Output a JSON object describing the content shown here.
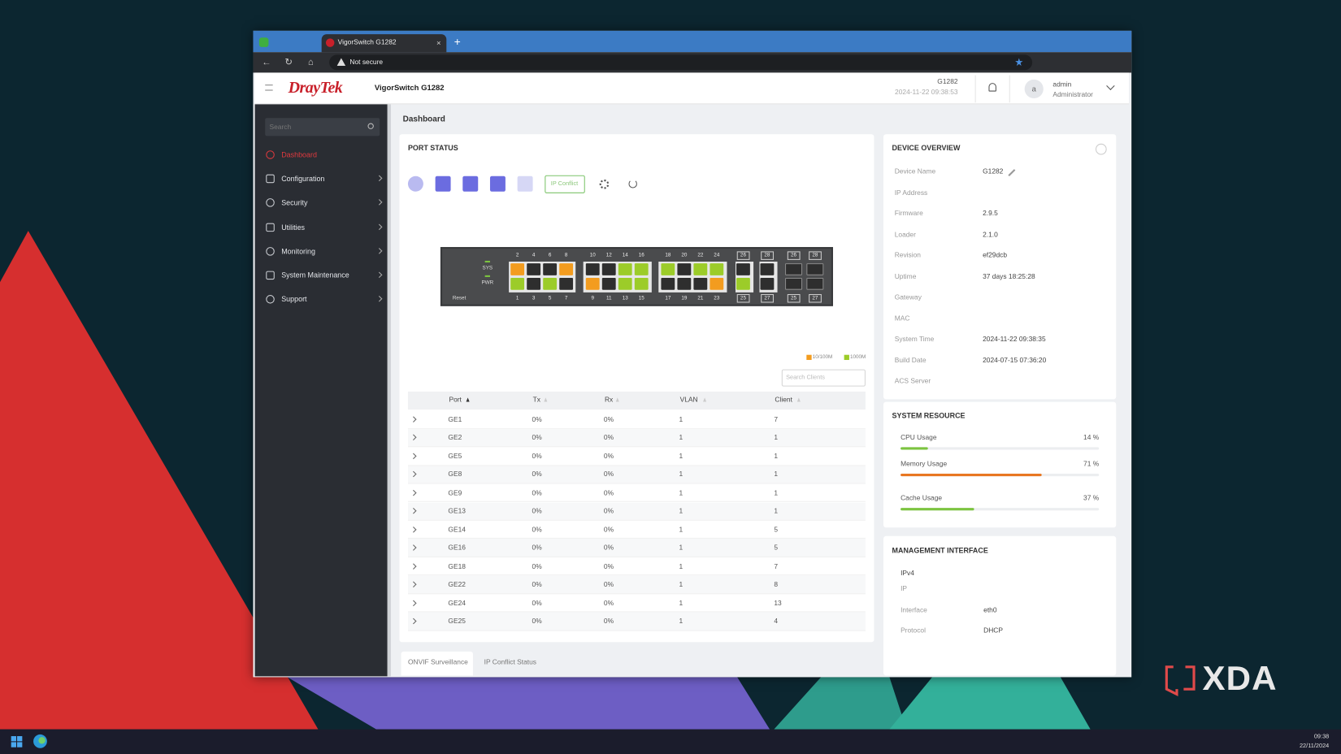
{
  "browser": {
    "tab_title": "VigorSwitch G1282",
    "security": "Not secure"
  },
  "header": {
    "brand": "DrayTek",
    "product": "VigorSwitch G1282",
    "model": "G1282",
    "datetime": "2024-11-22 09:38:53",
    "avatar": "a",
    "user": "admin",
    "role": "Administrator"
  },
  "sidebar": {
    "search_placeholder": "Search",
    "items": [
      "Dashboard",
      "Configuration",
      "Security",
      "Utilities",
      "Monitoring",
      "System Maintenance",
      "Support"
    ]
  },
  "breadcrumb": "Dashboard",
  "port_status": {
    "title": "PORT STATUS",
    "ip_conflict": "IP Conflict",
    "legend": [
      {
        "label": "10/100M",
        "color": "#f39c1f"
      },
      {
        "label": "1000M",
        "color": "#9ccc29"
      }
    ],
    "search_placeholder": "Search Clients",
    "columns": [
      "Port",
      "Tx",
      "Rx",
      "VLAN",
      "Client"
    ],
    "rows": [
      [
        "GE1",
        "0%",
        "0%",
        "1",
        "7"
      ],
      [
        "GE2",
        "0%",
        "0%",
        "1",
        "1"
      ],
      [
        "GE5",
        "0%",
        "0%",
        "1",
        "1"
      ],
      [
        "GE8",
        "0%",
        "0%",
        "1",
        "1"
      ],
      [
        "GE9",
        "0%",
        "0%",
        "1",
        "1"
      ],
      [
        "GE13",
        "0%",
        "0%",
        "1",
        "1"
      ],
      [
        "GE14",
        "0%",
        "0%",
        "1",
        "5"
      ],
      [
        "GE16",
        "0%",
        "0%",
        "1",
        "5"
      ],
      [
        "GE18",
        "0%",
        "0%",
        "1",
        "7"
      ],
      [
        "GE22",
        "0%",
        "0%",
        "1",
        "8"
      ],
      [
        "GE24",
        "0%",
        "0%",
        "1",
        "13"
      ],
      [
        "GE25",
        "0%",
        "0%",
        "1",
        "4"
      ]
    ]
  },
  "switch": {
    "sys": "SYS",
    "pwr": "PWR",
    "reset": "Reset",
    "top_labels": [
      "2",
      "4",
      "6",
      "8",
      "10",
      "12",
      "14",
      "16",
      "18",
      "20",
      "22",
      "24",
      "26",
      "28",
      "26",
      "28"
    ],
    "bottom_labels": [
      "1",
      "3",
      "5",
      "7",
      "9",
      "11",
      "13",
      "15",
      "17",
      "19",
      "21",
      "23",
      "25",
      "27",
      "25",
      "27"
    ],
    "top_colors": [
      "#f39c1f",
      "#2e2e2e",
      "#2e2e2e",
      "#f39c1f",
      "#2e2e2e",
      "#2e2e2e",
      "#9ccc29",
      "#9ccc29",
      "#9ccc29",
      "#2e2e2e",
      "#9ccc29",
      "#9ccc29",
      "#2e2e2e",
      "#2e2e2e",
      "#2e2e2e",
      "#2e2e2e"
    ],
    "bottom_colors": [
      "#9ccc29",
      "#2e2e2e",
      "#9ccc29",
      "#2e2e2e",
      "#f39c1f",
      "#2e2e2e",
      "#9ccc29",
      "#9ccc29",
      "#2e2e2e",
      "#2e2e2e",
      "#2e2e2e",
      "#f39c1f",
      "#9ccc29",
      "#2e2e2e",
      "#2e2e2e",
      "#2e2e2e"
    ]
  },
  "device_overview": {
    "title": "DEVICE OVERVIEW",
    "fields": [
      {
        "label": "Device Name",
        "value": "G1282"
      },
      {
        "label": "IP Address"
      },
      {
        "label": "Firmware",
        "value": "2.9.5"
      },
      {
        "label": "Loader",
        "value": "2.1.0"
      },
      {
        "label": "Revision",
        "value": "ef29dcb"
      },
      {
        "label": "Uptime",
        "value": "37 days 18:25:28"
      },
      {
        "label": "Gateway"
      },
      {
        "label": "MAC"
      },
      {
        "label": "System Time",
        "value": "2024-11-22 09:38:35"
      },
      {
        "label": "Build Date",
        "value": "2024-07-15 07:36:20"
      },
      {
        "label": "ACS Server"
      }
    ]
  },
  "system_resource": {
    "title": "SYSTEM RESOURCE",
    "items": [
      {
        "label": "CPU Usage",
        "value": 14,
        "value_label": "14 %",
        "color": "#7cc440"
      },
      {
        "label": "Memory Usage",
        "value": 71,
        "value_label": "71 %",
        "color": "#e87722"
      },
      {
        "label": "Cache Usage",
        "value": 37,
        "value_label": "37 %",
        "color": "#7cc440"
      }
    ]
  },
  "management_interface": {
    "title": "MANAGEMENT INTERFACE",
    "section": "IPv4",
    "fields": [
      {
        "label": "IP"
      },
      {
        "label": "Interface",
        "value": "eth0"
      },
      {
        "label": "Protocol",
        "value": "DHCP"
      }
    ]
  },
  "bottom_tabs": [
    "ONVIF Surveillance",
    "IP Conflict Status"
  ],
  "watermark": "XDA",
  "taskbar": {
    "time": "09:38",
    "date": "22/11/2024"
  }
}
